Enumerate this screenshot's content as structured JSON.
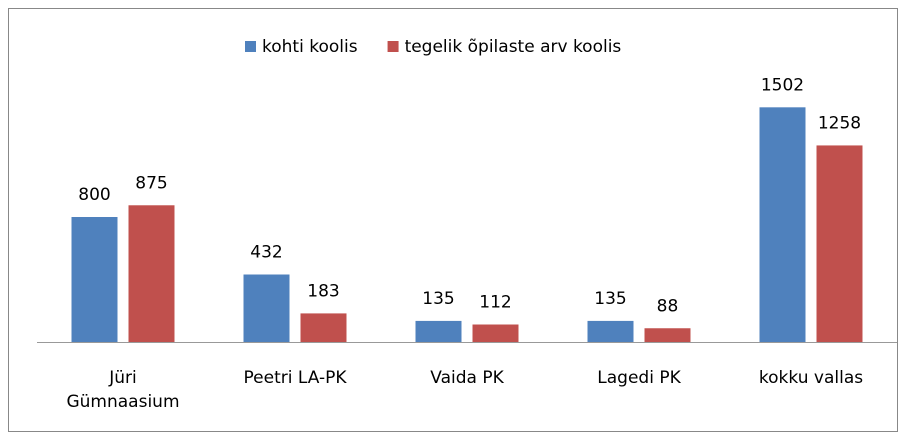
{
  "chart_data": {
    "type": "bar",
    "categories": [
      "Jüri\nGümnaasium",
      "Peetri LA-PK",
      "Vaida PK",
      "Lagedi PK",
      "kokku vallas"
    ],
    "series": [
      {
        "name": "kohti koolis",
        "color": "#4f81bd",
        "values": [
          800,
          432,
          135,
          135,
          1502
        ]
      },
      {
        "name": "tegelik õpilaste arv koolis",
        "color": "#c0504d",
        "values": [
          875,
          183,
          112,
          88,
          1258
        ]
      }
    ],
    "ylim": [
      0,
      1600
    ],
    "legend": "top"
  }
}
